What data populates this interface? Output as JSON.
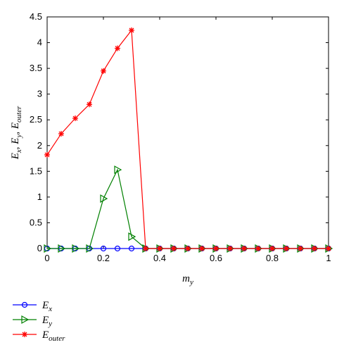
{
  "chart_data": {
    "type": "line",
    "xlabel": {
      "main": "m",
      "sub": "y"
    },
    "ylabel": [
      {
        "main": "E",
        "sub": "x",
        "sep": ", "
      },
      {
        "main": "E",
        "sub": "y",
        "sep": ", "
      },
      {
        "main": "E",
        "sub": "outer",
        "sep": ""
      }
    ],
    "xlim": [
      0,
      1
    ],
    "ylim": [
      0,
      4.5
    ],
    "xticks": [
      "0",
      "0.2",
      "0.4",
      "0.6",
      "0.8",
      "1"
    ],
    "yticks": [
      "0",
      "0.5",
      "1",
      "1.5",
      "2",
      "2.5",
      "3",
      "3.5",
      "4",
      "4.5"
    ],
    "grid": false,
    "legend_position": "below",
    "x": [
      0,
      0.05,
      0.1,
      0.15,
      0.2,
      0.25,
      0.3,
      0.35,
      0.4,
      0.45,
      0.5,
      0.55,
      0.6,
      0.65,
      0.7,
      0.75,
      0.8,
      0.85,
      0.9,
      0.95,
      1
    ],
    "series": [
      {
        "name": "E_x",
        "label_main": "E",
        "label_sub": "x",
        "color": "#0000ff",
        "marker": "circle",
        "values": [
          0,
          0,
          0,
          0,
          0,
          0,
          0,
          0,
          0,
          0,
          0,
          0,
          0,
          0,
          0,
          0,
          0,
          0,
          0,
          0,
          0
        ]
      },
      {
        "name": "E_y",
        "label_main": "E",
        "label_sub": "y",
        "color": "#008000",
        "marker": "triangle-right",
        "values": [
          0,
          0,
          0,
          0,
          0.97,
          1.53,
          0.23,
          0,
          0,
          0,
          0,
          0,
          0,
          0,
          0,
          0,
          0,
          0,
          0,
          0,
          0
        ]
      },
      {
        "name": "E_outer",
        "label_main": "E",
        "label_sub": "outer",
        "color": "#ff0000",
        "marker": "asterisk",
        "values": [
          1.82,
          2.23,
          2.53,
          2.8,
          3.45,
          3.89,
          4.24,
          0,
          0,
          0,
          0,
          0,
          0,
          0,
          0,
          0,
          0,
          0,
          0,
          0,
          0
        ]
      }
    ]
  }
}
